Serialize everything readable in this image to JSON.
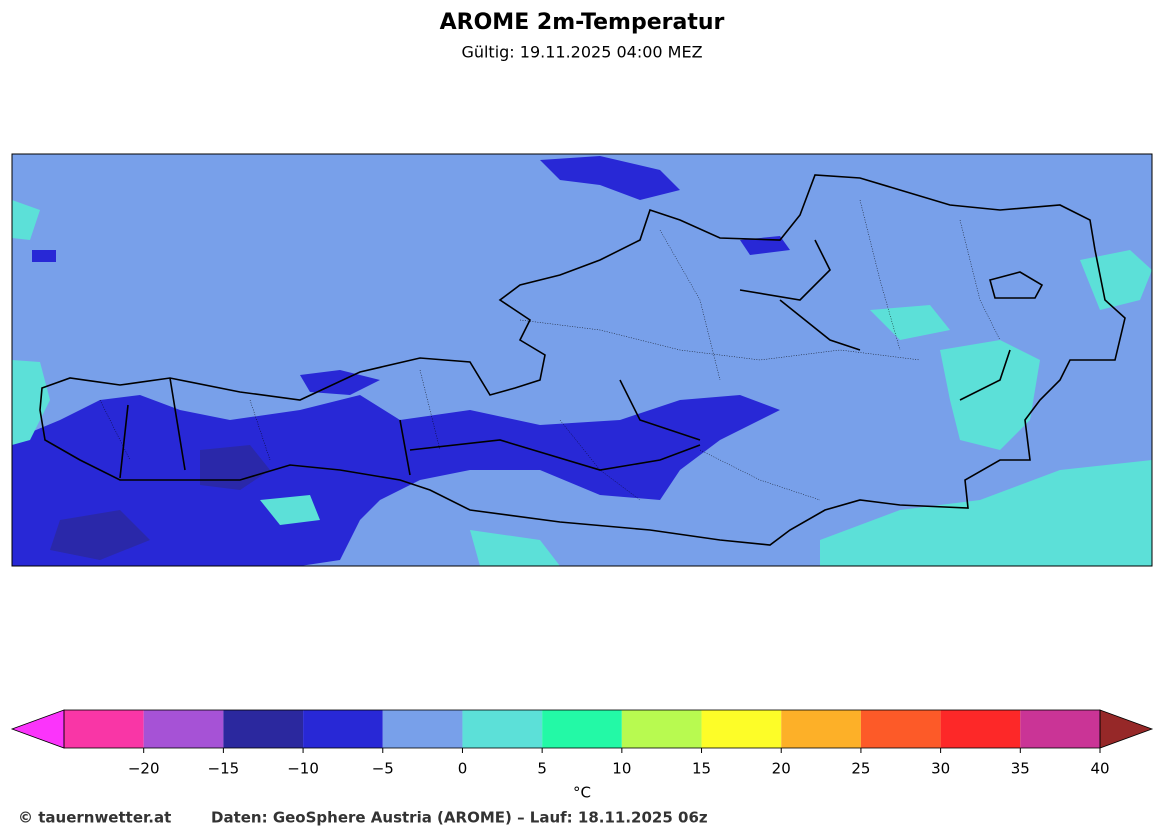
{
  "title": "AROME 2m-Temperatur",
  "subtitle": "Gültig: 19.11.2025 04:00 MEZ",
  "colorbar": {
    "label": "°C",
    "xlim": [
      -25,
      40
    ],
    "levels": [
      -25,
      -20,
      -15,
      -10,
      -5,
      0,
      5,
      10,
      15,
      20,
      25,
      30,
      35,
      40
    ],
    "colors": [
      "#f936a6",
      "#a652d6",
      "#2b289e",
      "#2828d6",
      "#78a0ea",
      "#5ce0d8",
      "#23f9a6",
      "#b8fa50",
      "#fdfd28",
      "#fdb028",
      "#fd5a28",
      "#fd2828",
      "#ca3496"
    ],
    "under_color": "#fb34fb",
    "over_color": "#962828",
    "xticks": [
      {
        "value": -20,
        "label": "−20"
      },
      {
        "value": -15,
        "label": "−15"
      },
      {
        "value": -10,
        "label": "−10"
      },
      {
        "value": -5,
        "label": "−5"
      },
      0,
      5,
      10,
      15,
      20,
      25,
      30,
      35,
      40
    ]
  },
  "footer": {
    "credit": "© tauernwetter.at",
    "source": "Daten: GeoSphere Austria (AROME) – Lauf: 18.11.2025 06z"
  }
}
